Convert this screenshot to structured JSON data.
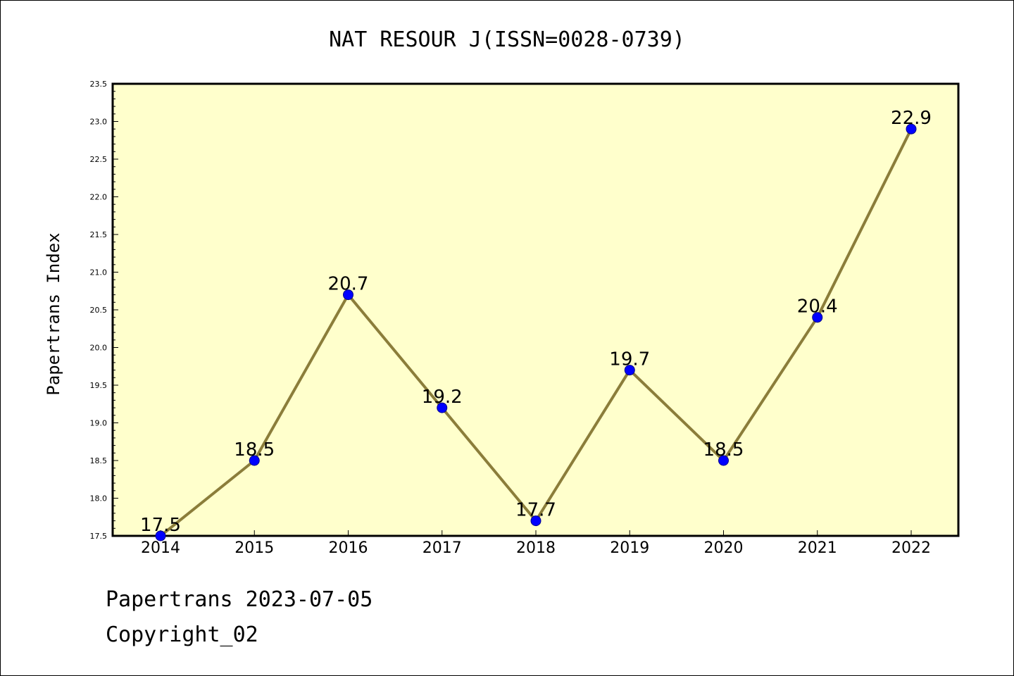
{
  "chart_data": {
    "type": "line",
    "title": "NAT RESOUR J(ISSN=0028-0739)",
    "xlabel": "",
    "ylabel": "Papertrans Index",
    "categories": [
      "2014",
      "2015",
      "2016",
      "2017",
      "2018",
      "2019",
      "2020",
      "2021",
      "2022"
    ],
    "series": [
      {
        "values": [
          17.5,
          18.5,
          20.7,
          19.2,
          17.7,
          19.7,
          18.5,
          20.4,
          22.9
        ],
        "labels": [
          "17.5",
          "18.5",
          "20.7",
          "19.2",
          "17.7",
          "19.7",
          "18.5",
          "20.4",
          "22.9"
        ]
      }
    ],
    "ylim": [
      17.5,
      23.5
    ],
    "yticks": [
      "17.5",
      "18.0",
      "18.5",
      "19.0",
      "19.5",
      "20.0",
      "20.5",
      "21.0",
      "21.5",
      "22.0",
      "22.5",
      "23.0",
      "23.5"
    ],
    "grid": false,
    "legend": "none",
    "colors": {
      "plot_background": "#ffffcc",
      "line": "#8b7d3a",
      "marker": "#0000ff"
    }
  },
  "footer": {
    "line1": "Papertrans 2023-07-05",
    "line2": "Copyright_02"
  }
}
